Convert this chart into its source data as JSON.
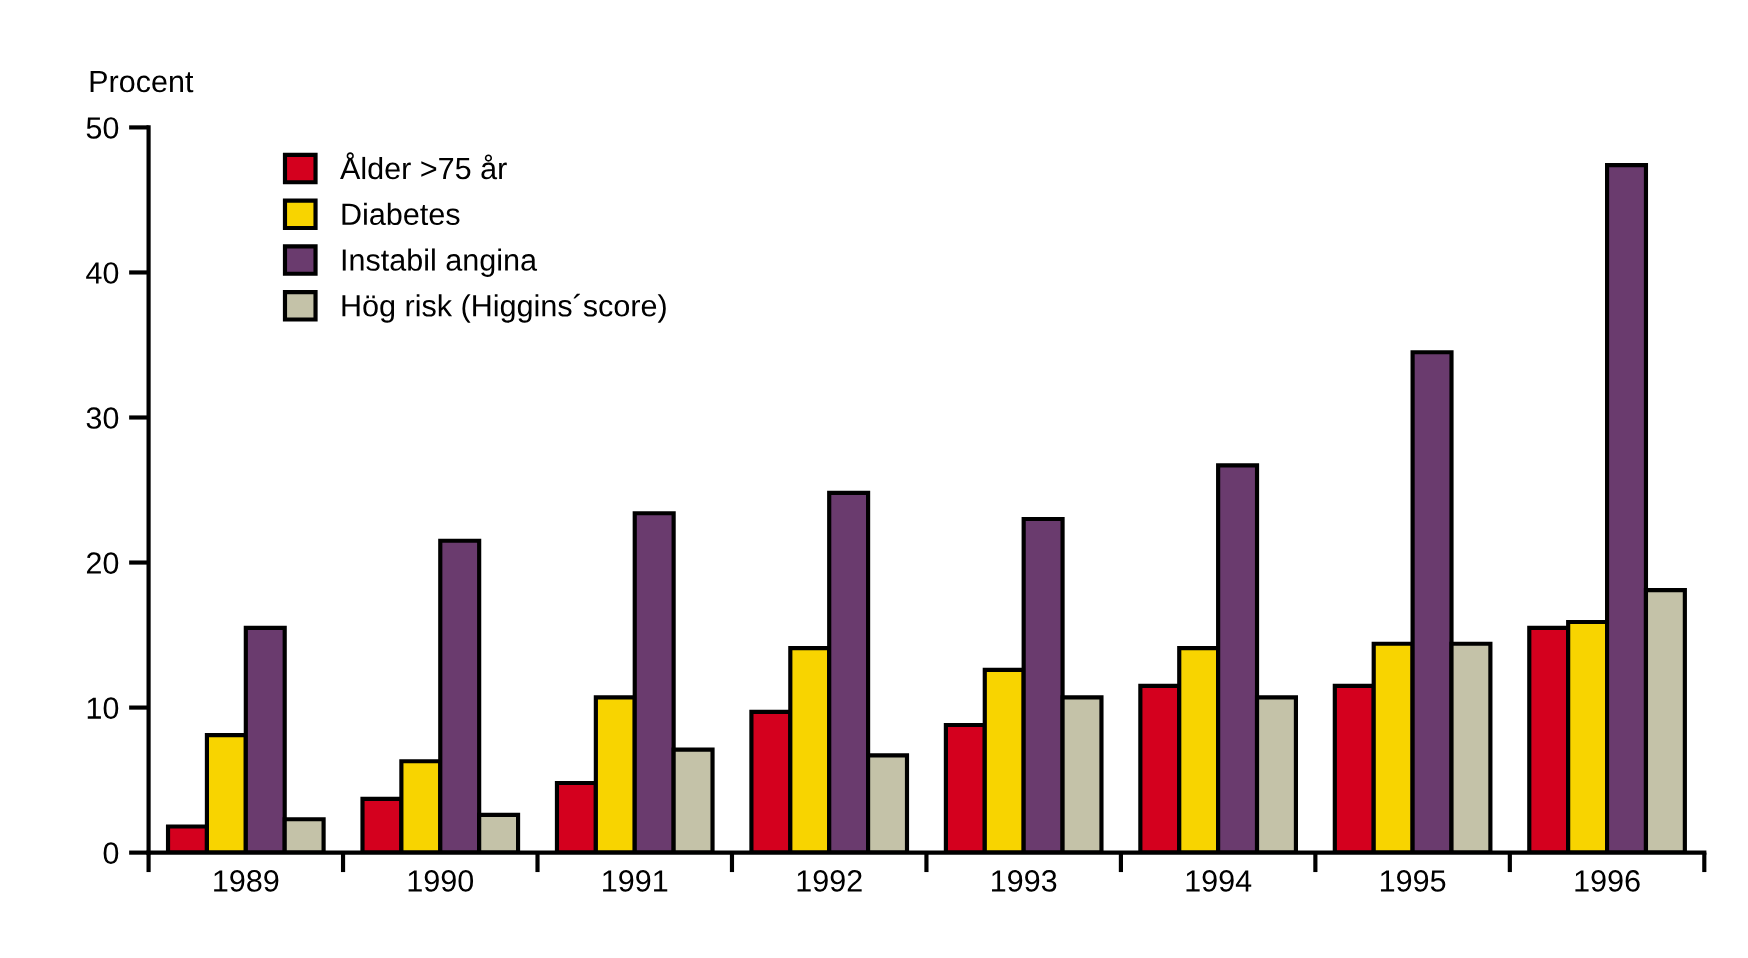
{
  "chart_data": {
    "type": "bar",
    "ylabel": "Procent",
    "categories": [
      "1989",
      "1990",
      "1991",
      "1992",
      "1993",
      "1994",
      "1995",
      "1996"
    ],
    "series": [
      {
        "name": "Ålder >75 år",
        "color": "#d4001e",
        "values": [
          1.8,
          3.7,
          4.8,
          9.7,
          8.8,
          11.5,
          11.5,
          15.5
        ]
      },
      {
        "name": "Diabetes",
        "color": "#f8d400",
        "values": [
          8.1,
          6.3,
          10.7,
          14.1,
          12.6,
          14.1,
          14.4,
          15.9
        ]
      },
      {
        "name": "Instabil angina",
        "color": "#6a3b6e",
        "values": [
          15.5,
          21.5,
          23.4,
          24.8,
          23.0,
          26.7,
          34.5,
          47.4
        ]
      },
      {
        "name": "Hög risk (Higgins´score)",
        "color": "#c4c2a8",
        "values": [
          2.3,
          2.6,
          7.1,
          6.7,
          10.7,
          10.7,
          14.4,
          18.1
        ]
      }
    ],
    "ylim": [
      0,
      50
    ],
    "yticks": [
      0,
      10,
      20,
      30,
      40,
      50
    ],
    "grid": false,
    "legend": "top left"
  }
}
